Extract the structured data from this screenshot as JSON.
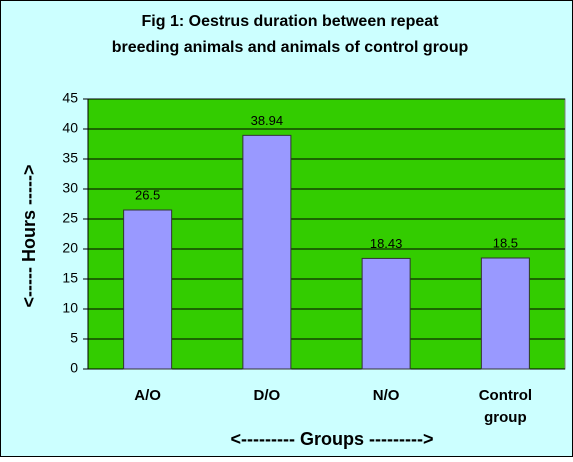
{
  "chart_data": {
    "type": "bar",
    "title": [
      "Fig 1: Oestrus duration between repeat",
      "breeding animals and animals of control group"
    ],
    "x_label": "<--------- Groups --------->",
    "y_label": "<----- Hours ----->",
    "categories": [
      "A/O",
      "D/O",
      "N/O",
      "Control group"
    ],
    "values": [
      26.5,
      38.94,
      18.43,
      18.5
    ],
    "color": "#9999ff",
    "plot_background": "#33cc00",
    "ylim": [
      0,
      45
    ],
    "yticks": [
      0,
      5,
      10,
      15,
      20,
      25,
      30,
      35,
      40,
      45
    ],
    "grid": true
  }
}
